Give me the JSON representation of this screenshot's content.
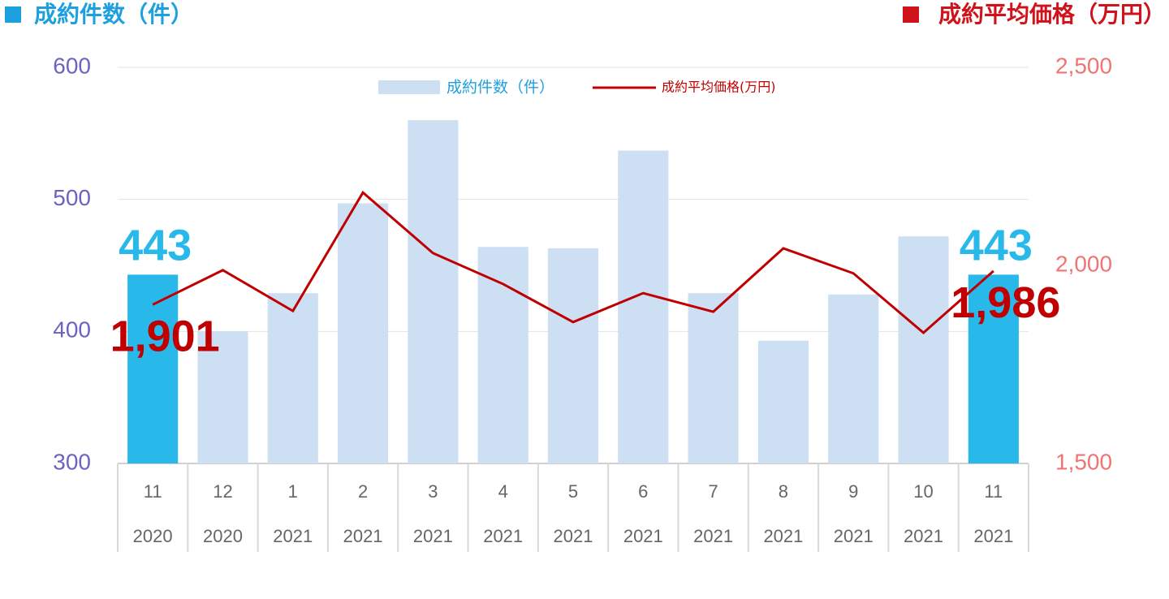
{
  "chart_data": {
    "type": "bar_line",
    "y_label": "成約件数（件）",
    "y2_label": "成約平均価格（万円）",
    "categories": [
      "11",
      "12",
      "1",
      "2",
      "3",
      "4",
      "5",
      "6",
      "7",
      "8",
      "9",
      "10",
      "11"
    ],
    "category_years": [
      "2020",
      "2020",
      "2021",
      "2021",
      "2021",
      "2021",
      "2021",
      "2021",
      "2021",
      "2021",
      "2021",
      "2021",
      "2021"
    ],
    "series": [
      {
        "name": "成約件数（件）",
        "type": "bar",
        "color": "#cddff3",
        "colors": [
          "#29b8ea",
          "#cddff3",
          "#cddff3",
          "#cddff3",
          "#cddff3",
          "#cddff3",
          "#cddff3",
          "#cddff3",
          "#cddff3",
          "#cddff3",
          "#cddff3",
          "#cddff3",
          "#29b8ea"
        ],
        "values": [
          443,
          400,
          429,
          497,
          560,
          464,
          463,
          537,
          429,
          393,
          428,
          472,
          443
        ],
        "value_labels": [
          "443",
          null,
          null,
          null,
          null,
          null,
          null,
          null,
          null,
          null,
          null,
          null,
          "443"
        ],
        "label_color": "#29b8ea"
      },
      {
        "name": "成約平均価格(万円)",
        "type": "line",
        "axis": "y2",
        "color": "#c00000",
        "values": [
          1901,
          1988,
          1885,
          2184,
          2031,
          1953,
          1857,
          1930,
          1883,
          2043,
          1980,
          1830,
          1986
        ],
        "value_labels": [
          "1,901",
          null,
          null,
          null,
          null,
          null,
          null,
          null,
          null,
          null,
          null,
          null,
          "1,986"
        ],
        "label_color": "#c00000"
      }
    ],
    "ylim": [
      300,
      600
    ],
    "yticks": [
      300,
      400,
      500,
      600
    ],
    "y2lim": [
      1500,
      2500
    ],
    "y2ticks": [
      {
        "value": 1500,
        "label": "1,500"
      },
      {
        "value": 2000,
        "label": "2,000"
      },
      {
        "value": 2500,
        "label": "2,500"
      }
    ],
    "grid": true,
    "legend": "top"
  }
}
